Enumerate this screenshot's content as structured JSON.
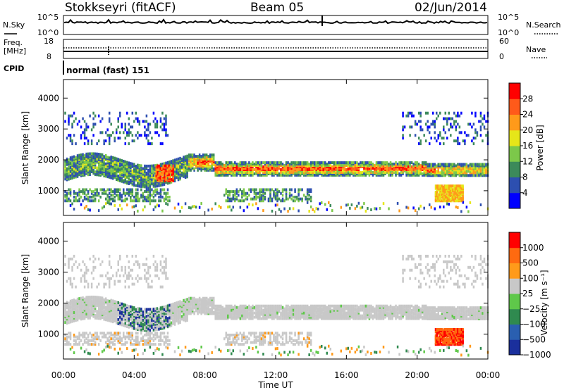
{
  "header": {
    "station": "Stokkseyri (fitACF)",
    "beam": "Beam 05",
    "date": "02/Jun/2014"
  },
  "panels": {
    "nsky": {
      "left_label": "N.Sky",
      "right_label": "N.Search",
      "left_ticks": [
        "10^5",
        "10^0"
      ],
      "right_ticks": [
        "10^5",
        "10^0"
      ]
    },
    "freq": {
      "label_line1": "Freq.",
      "label_line2": "[MHz]",
      "left_ticks": [
        "18",
        "8"
      ],
      "right_ticks": [
        "60",
        "0"
      ],
      "right_label": "Nave"
    },
    "cpid": {
      "label": "CPID",
      "value": "normal (fast) 151"
    }
  },
  "chart_data": [
    {
      "type": "heatmap",
      "title": "",
      "xlabel": "Time UT",
      "ylabel": "Slant Range [km]",
      "xlim": [
        "00:00",
        "24:00"
      ],
      "ylim": [
        200,
        4600
      ],
      "x_ticks": [
        "00:00",
        "04:00",
        "08:00",
        "12:00",
        "16:00",
        "20:00",
        "00:00"
      ],
      "y_ticks": [
        "1000",
        "2000",
        "3000",
        "4000"
      ],
      "colorbar": {
        "label": "Power [dB]",
        "ticks": [
          "4",
          "8",
          "12",
          "16",
          "20",
          "24",
          "28"
        ],
        "colors": [
          "#0000ff",
          "#2d4fb0",
          "#3c8a5a",
          "#7cc84a",
          "#e6e619",
          "#ff9a1a",
          "#ff5a1a",
          "#ff0000"
        ]
      }
    },
    {
      "type": "heatmap",
      "title": "",
      "xlabel": "Time UT",
      "ylabel": "Slant Range [km]",
      "xlim": [
        "00:00",
        "24:00"
      ],
      "ylim": [
        200,
        4600
      ],
      "x_ticks": [
        "00:00",
        "04:00",
        "08:00",
        "12:00",
        "16:00",
        "20:00",
        "00:00"
      ],
      "y_ticks": [
        "1000",
        "2000",
        "3000",
        "4000"
      ],
      "colorbar": {
        "label": "Velocity [m s⁻¹]",
        "ticks": [
          "1000",
          "500",
          "100",
          "25",
          "−25",
          "−100",
          "−500",
          "−1000"
        ],
        "colors": [
          "#1a2f9c",
          "#2a5fb0",
          "#2f8a4f",
          "#5fc84a",
          "#c8c8c8",
          "#ff9a1a",
          "#ff6a10",
          "#ff0000"
        ]
      }
    }
  ],
  "x_axis_title": "Time UT"
}
